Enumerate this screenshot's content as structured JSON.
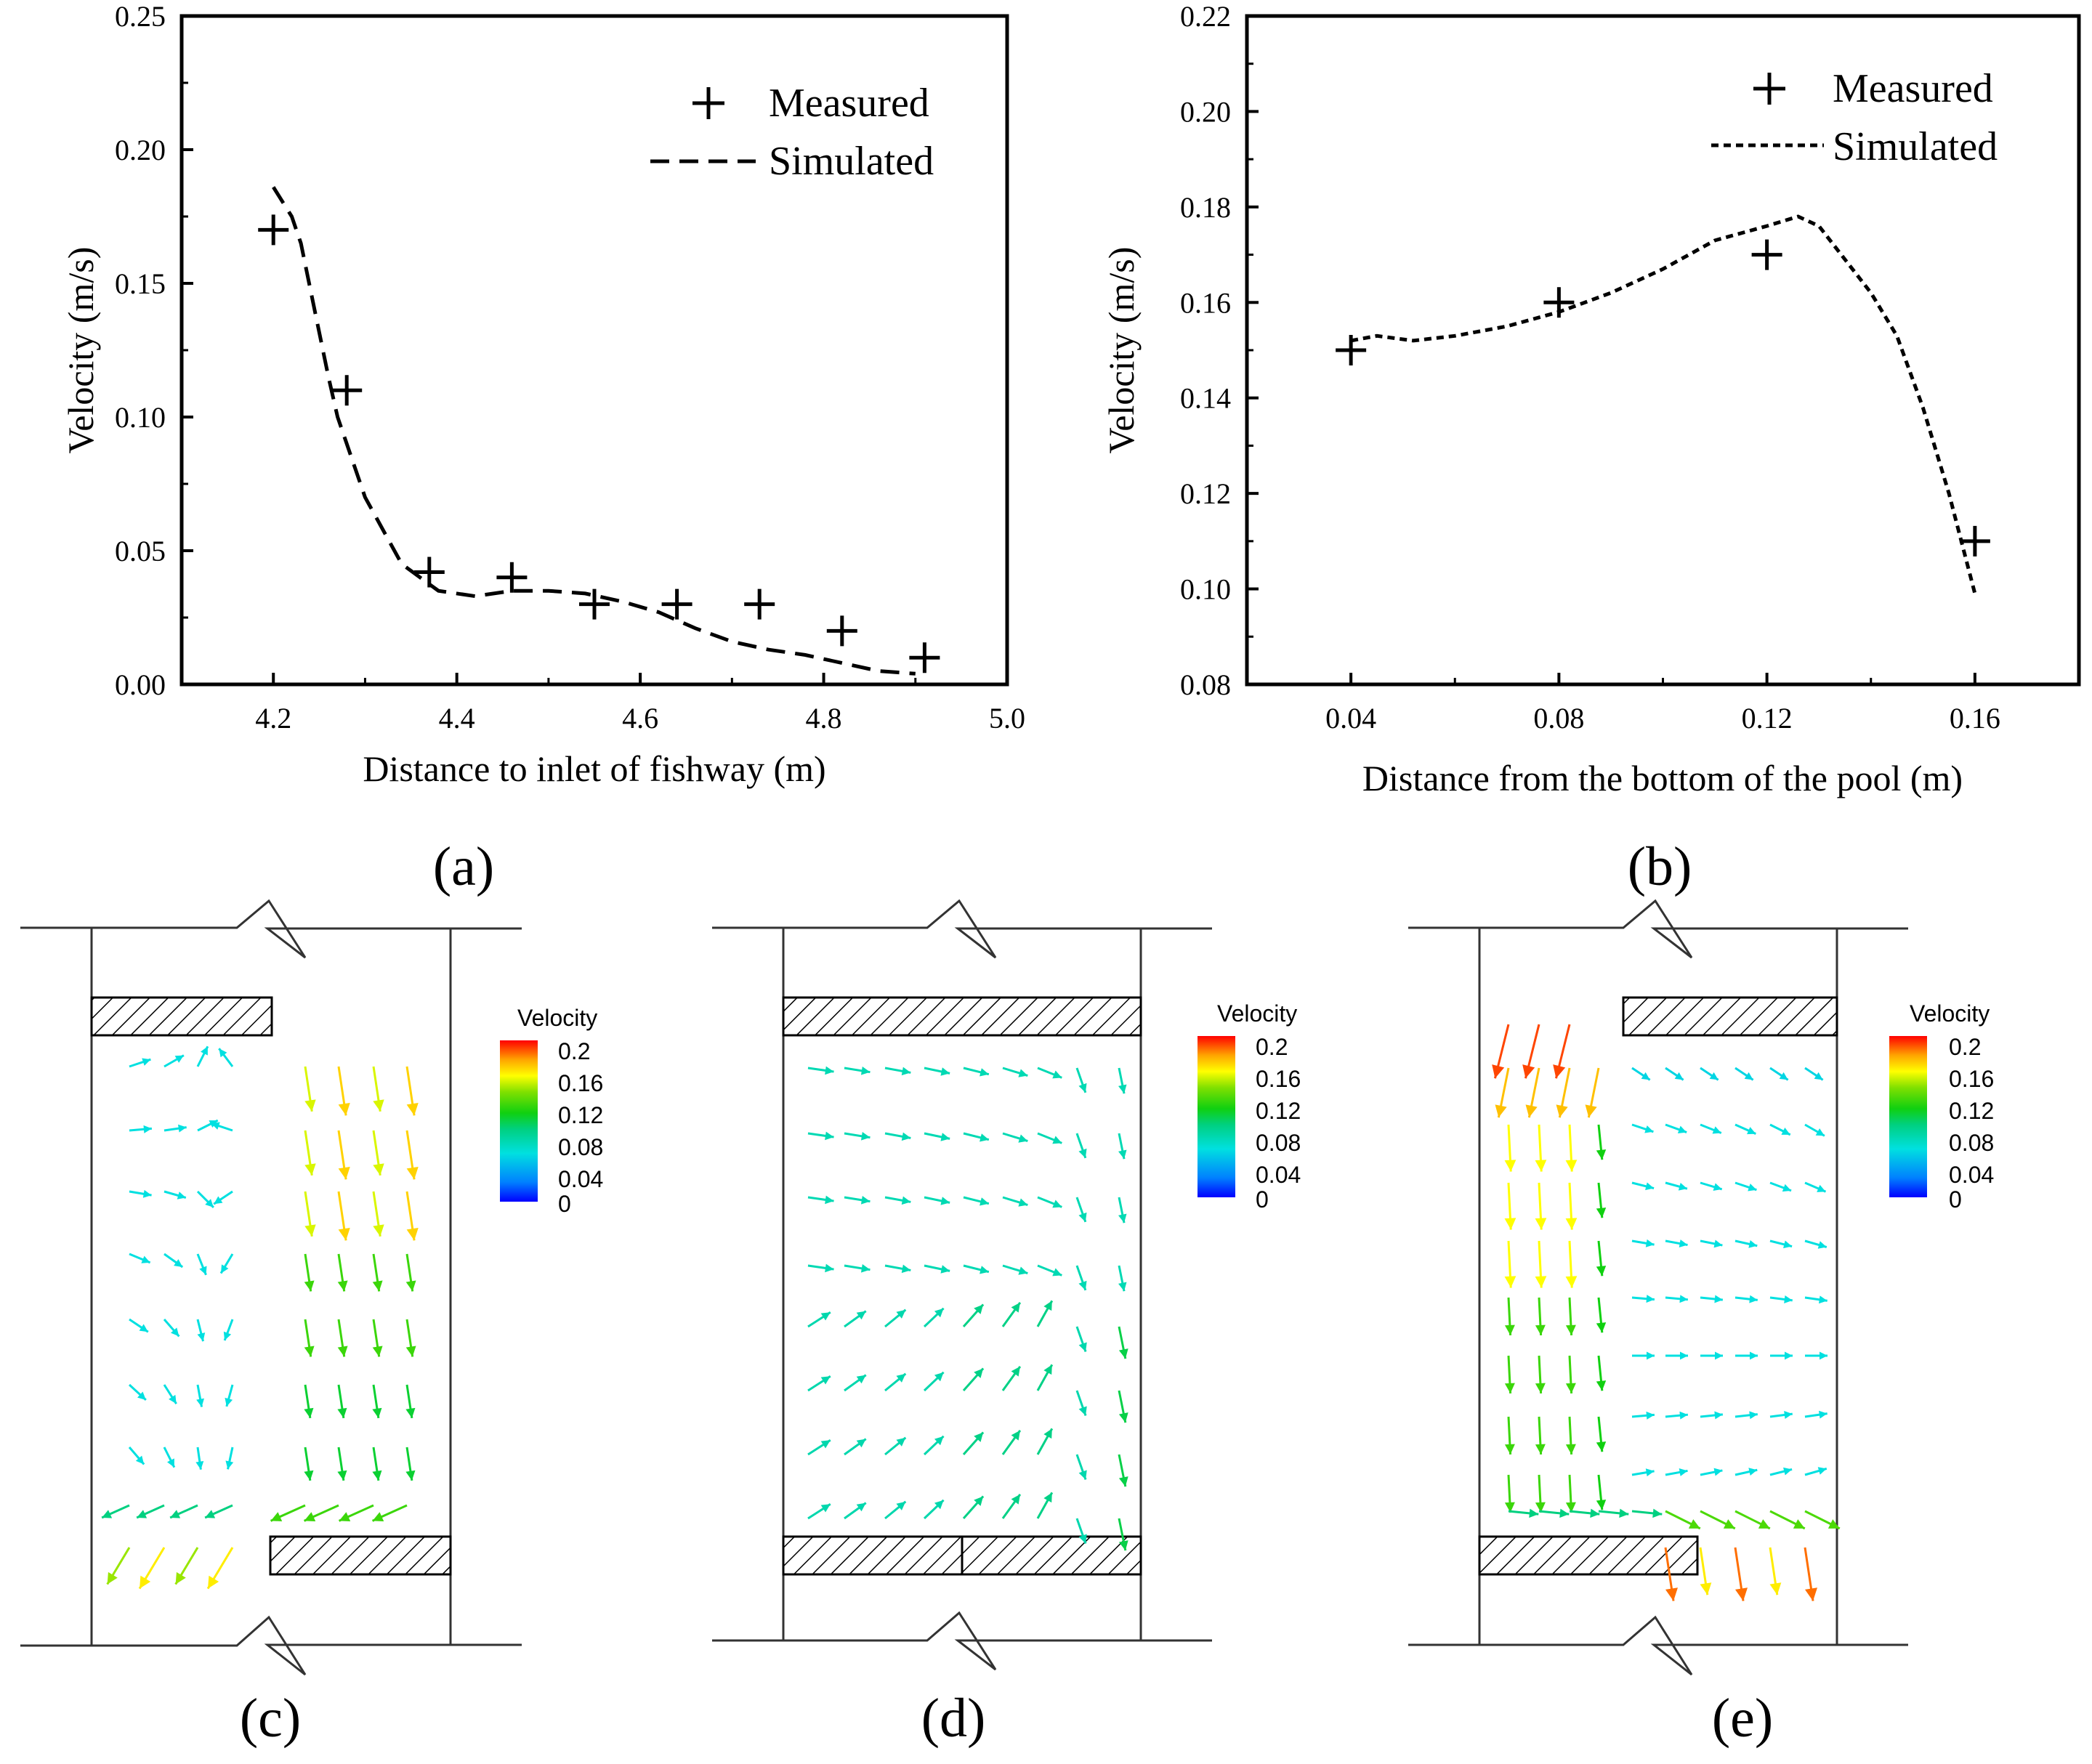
{
  "chart_data": [
    {
      "panel_id": "a",
      "panel_label": "(a)",
      "type": "scatter+line",
      "xlabel": "Distance to inlet of fishway (m)",
      "ylabel": "Velocity  (m/s)",
      "xlim": [
        4.1,
        5.0
      ],
      "ylim": [
        0.0,
        0.25
      ],
      "x_ticks": [
        "4.2",
        "4.4",
        "4.6",
        "4.8",
        "5.0"
      ],
      "y_ticks": [
        "0.00",
        "0.05",
        "0.10",
        "0.15",
        "0.20",
        "0.25"
      ],
      "legend": {
        "placement": "top-right",
        "entries": [
          "Measured",
          "Simulated"
        ]
      },
      "series": [
        {
          "name": "Measured",
          "style": "plus-marker",
          "x": [
            4.2,
            4.28,
            4.37,
            4.46,
            4.55,
            4.64,
            4.73,
            4.82,
            4.91
          ],
          "y": [
            0.17,
            0.11,
            0.042,
            0.04,
            0.03,
            0.03,
            0.03,
            0.02,
            0.01
          ]
        },
        {
          "name": "Simulated",
          "style": "dashed",
          "x": [
            4.2,
            4.22,
            4.23,
            4.245,
            4.26,
            4.27,
            4.3,
            4.34,
            4.38,
            4.42,
            4.46,
            4.5,
            4.54,
            4.58,
            4.62,
            4.66,
            4.7,
            4.74,
            4.78,
            4.82,
            4.86,
            4.9
          ],
          "y": [
            0.186,
            0.175,
            0.165,
            0.14,
            0.115,
            0.1,
            0.07,
            0.045,
            0.035,
            0.033,
            0.035,
            0.035,
            0.034,
            0.031,
            0.027,
            0.021,
            0.016,
            0.013,
            0.011,
            0.008,
            0.005,
            0.004
          ]
        }
      ]
    },
    {
      "panel_id": "b",
      "panel_label": "(b)",
      "type": "scatter+line",
      "xlabel": "Distance from the bottom of the pool (m)",
      "ylabel": "Velocity  (m/s)",
      "xlim": [
        0.02,
        0.18
      ],
      "ylim": [
        0.08,
        0.22
      ],
      "x_ticks": [
        "0.04",
        "0.08",
        "0.12",
        "0.16"
      ],
      "y_ticks": [
        "0.08",
        "0.10",
        "0.12",
        "0.14",
        "0.16",
        "0.18",
        "0.20",
        "0.22"
      ],
      "legend": {
        "placement": "top-right",
        "entries": [
          "Measured",
          "Simulated"
        ]
      },
      "series": [
        {
          "name": "Measured",
          "style": "plus-marker",
          "x": [
            0.04,
            0.08,
            0.12,
            0.16
          ],
          "y": [
            0.15,
            0.16,
            0.17,
            0.11
          ]
        },
        {
          "name": "Simulated",
          "style": "dotted",
          "x": [
            0.04,
            0.045,
            0.052,
            0.06,
            0.07,
            0.08,
            0.09,
            0.1,
            0.11,
            0.12,
            0.126,
            0.13,
            0.14,
            0.145,
            0.15,
            0.155,
            0.16
          ],
          "y": [
            0.152,
            0.153,
            0.152,
            0.153,
            0.155,
            0.158,
            0.162,
            0.167,
            0.173,
            0.176,
            0.178,
            0.176,
            0.162,
            0.153,
            0.138,
            0.12,
            0.099
          ]
        }
      ]
    },
    {
      "panel_id": "c",
      "panel_label": "(c)",
      "type": "vector-field",
      "legend": {
        "title": "Velocity",
        "levels": [
          "0.2",
          "0.16",
          "0.12",
          "0.08",
          "0.04",
          "0"
        ]
      },
      "colormap": [
        "#0000ff",
        "#0080ff",
        "#00e0e0",
        "#00d080",
        "#10d010",
        "#80e000",
        "#ffff00",
        "#ffa500",
        "#ff6000",
        "#ff0000"
      ],
      "baffles": [
        "top-left",
        "bottom-right"
      ]
    },
    {
      "panel_id": "d",
      "panel_label": "(d)",
      "type": "vector-field",
      "legend": {
        "title": "Velocity",
        "levels": [
          "0.2",
          "0.16",
          "0.12",
          "0.08",
          "0.04",
          "0"
        ]
      },
      "colormap": [
        "#0000ff",
        "#0080ff",
        "#00e0e0",
        "#00d080",
        "#10d010",
        "#80e000",
        "#ffff00",
        "#ffa500",
        "#ff6000",
        "#ff0000"
      ],
      "baffles": [
        "top-full",
        "bottom-full"
      ]
    },
    {
      "panel_id": "e",
      "panel_label": "(e)",
      "type": "vector-field",
      "legend": {
        "title": "Velocity",
        "levels": [
          "0.2",
          "0.16",
          "0.12",
          "0.08",
          "0.04",
          "0"
        ]
      },
      "colormap": [
        "#0000ff",
        "#0080ff",
        "#00e0e0",
        "#00d080",
        "#10d010",
        "#80e000",
        "#ffff00",
        "#ffa500",
        "#ff6000",
        "#ff0000"
      ],
      "baffles": [
        "top-right",
        "bottom-left"
      ]
    }
  ]
}
